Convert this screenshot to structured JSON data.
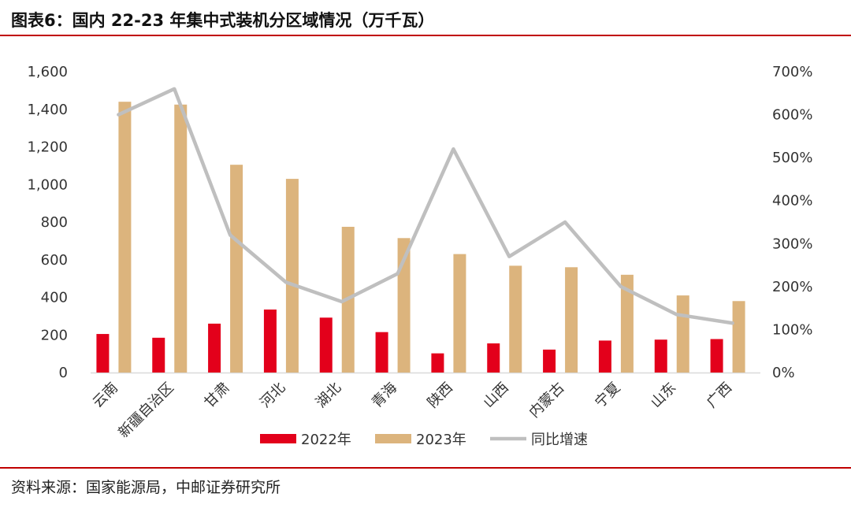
{
  "figure": {
    "title": "图表6：国内 22-23 年集中式装机分区域情况（万千瓦）",
    "source": "资料来源：国家能源局，中邮证券研究所"
  },
  "colors": {
    "accent_rule": "#c00000",
    "series_2022": "#e3001b",
    "series_2023": "#dcb47d",
    "series_growth": "#bfbfbf",
    "axis": "#d9d9d9",
    "tick_text": "#333333"
  },
  "chart_data": {
    "type": "bar",
    "categories": [
      "云南",
      "新疆自治区",
      "甘肃",
      "河北",
      "湖北",
      "青海",
      "陕西",
      "山西",
      "内蒙古",
      "宁夏",
      "山东",
      "广西"
    ],
    "series": [
      {
        "name": "2022年",
        "type": "bar",
        "axis": "left",
        "values": [
          205,
          185,
          260,
          335,
          292,
          215,
          102,
          155,
          122,
          170,
          175,
          178
        ]
      },
      {
        "name": "2023年",
        "type": "bar",
        "axis": "left",
        "values": [
          1440,
          1425,
          1105,
          1030,
          775,
          715,
          630,
          568,
          560,
          520,
          410,
          380
        ]
      },
      {
        "name": "同比增速",
        "type": "line",
        "axis": "right",
        "values": [
          600,
          660,
          320,
          210,
          165,
          230,
          520,
          270,
          350,
          200,
          135,
          115
        ]
      }
    ],
    "ylim": [
      0,
      1600
    ],
    "y_ticks": [
      "0",
      "200",
      "400",
      "600",
      "800",
      "1,000",
      "1,200",
      "1,400",
      "1,600"
    ],
    "y2lim": [
      0,
      700
    ],
    "y2_ticks": [
      "0%",
      "100%",
      "200%",
      "300%",
      "400%",
      "500%",
      "600%",
      "700%"
    ],
    "legend_position": "bottom",
    "grid": false,
    "xlabel": "",
    "ylabel": "",
    "y2label": ""
  }
}
